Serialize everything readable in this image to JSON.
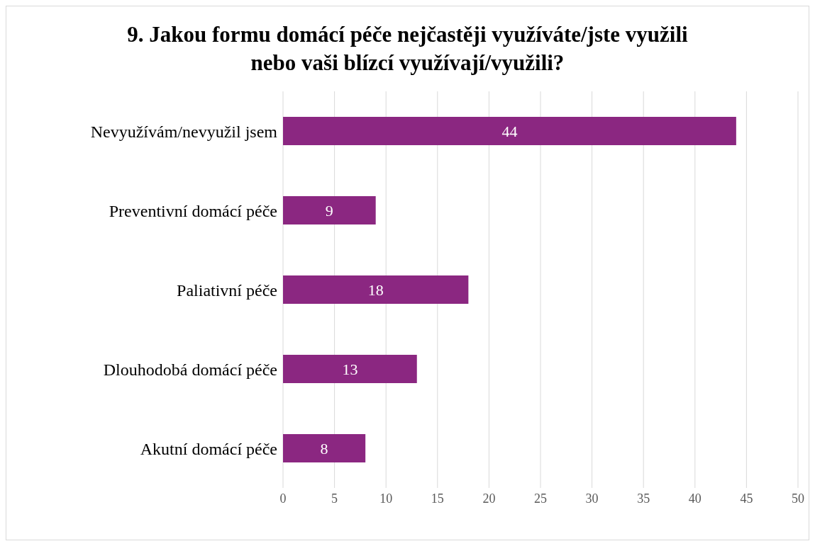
{
  "chart_data": {
    "type": "bar",
    "orientation": "horizontal",
    "title": "9. Jakou formu domácí péče nejčastěji využíváte/jste využili nebo vaši blízcí využívají/využili?",
    "categories": [
      "Nevyužívám/nevyužil jsem",
      "Preventivní domácí péče",
      "Paliativní péče",
      "Dlouhodobá domácí péče",
      "Akutní domácí péče"
    ],
    "values": [
      44,
      9,
      18,
      13,
      8
    ],
    "color": "#8b2781",
    "data_labels": true,
    "xlim": [
      0,
      50
    ],
    "xticks": [
      0,
      5,
      10,
      15,
      20,
      25,
      30,
      35,
      40,
      45,
      50
    ],
    "grid": "x"
  }
}
